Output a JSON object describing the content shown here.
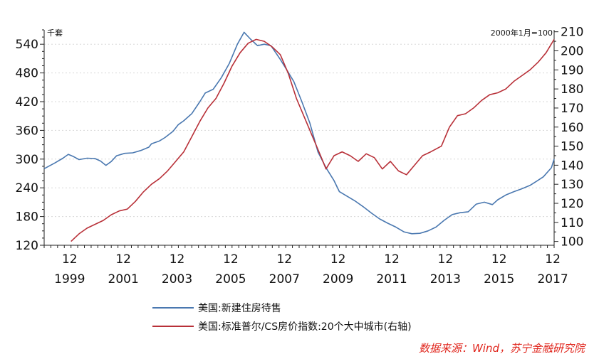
{
  "chart_data": {
    "type": "line",
    "left_axis_unit": "千套",
    "right_axis_unit": "2000年1月=100",
    "x_tick_top": [
      "12",
      "12",
      "12",
      "12",
      "12",
      "12",
      "12",
      "12",
      "12",
      "12"
    ],
    "x_tick_bottom": [
      "1999",
      "2001",
      "2003",
      "2005",
      "2007",
      "2009",
      "2011",
      "2013",
      "2015",
      "2017"
    ],
    "x_range": [
      1999.0,
      2018.0
    ],
    "left_axis": {
      "ylim": [
        120,
        570
      ],
      "ticks": [
        120,
        180,
        240,
        300,
        360,
        420,
        480,
        540
      ]
    },
    "right_axis": {
      "ylim": [
        98,
        211
      ],
      "ticks": [
        100,
        110,
        120,
        130,
        140,
        150,
        160,
        170,
        180,
        190,
        200,
        210
      ]
    },
    "grid": "horizontal dotted",
    "series": [
      {
        "name": "美国:新建住房待售",
        "axis": "left",
        "color": "#4a78b0",
        "points": [
          [
            1999.0,
            280
          ],
          [
            1999.4,
            292
          ],
          [
            1999.7,
            302
          ],
          [
            1999.9,
            310
          ],
          [
            2000.1,
            305
          ],
          [
            2000.3,
            299
          ],
          [
            2000.6,
            302
          ],
          [
            2000.9,
            301
          ],
          [
            2001.1,
            296
          ],
          [
            2001.3,
            287
          ],
          [
            2001.5,
            295
          ],
          [
            2001.7,
            307
          ],
          [
            2002.0,
            312
          ],
          [
            2002.3,
            313
          ],
          [
            2002.6,
            318
          ],
          [
            2002.9,
            325
          ],
          [
            2003.0,
            332
          ],
          [
            2003.3,
            338
          ],
          [
            2003.5,
            345
          ],
          [
            2003.8,
            358
          ],
          [
            2004.0,
            372
          ],
          [
            2004.2,
            380
          ],
          [
            2004.5,
            395
          ],
          [
            2004.8,
            420
          ],
          [
            2005.0,
            438
          ],
          [
            2005.3,
            446
          ],
          [
            2005.6,
            470
          ],
          [
            2005.9,
            500
          ],
          [
            2006.2,
            540
          ],
          [
            2006.45,
            565
          ],
          [
            2006.7,
            550
          ],
          [
            2006.95,
            537
          ],
          [
            2007.2,
            540
          ],
          [
            2007.45,
            537
          ],
          [
            2007.8,
            508
          ],
          [
            2008.0,
            490
          ],
          [
            2008.3,
            462
          ],
          [
            2008.6,
            420
          ],
          [
            2008.9,
            375
          ],
          [
            2009.2,
            315
          ],
          [
            2009.5,
            282
          ],
          [
            2009.8,
            255
          ],
          [
            2010.0,
            232
          ],
          [
            2010.3,
            222
          ],
          [
            2010.6,
            212
          ],
          [
            2010.9,
            200
          ],
          [
            2011.2,
            187
          ],
          [
            2011.5,
            175
          ],
          [
            2011.8,
            166
          ],
          [
            2012.1,
            158
          ],
          [
            2012.4,
            148
          ],
          [
            2012.7,
            144
          ],
          [
            2013.0,
            145
          ],
          [
            2013.3,
            150
          ],
          [
            2013.6,
            158
          ],
          [
            2013.9,
            172
          ],
          [
            2014.2,
            184
          ],
          [
            2014.5,
            188
          ],
          [
            2014.8,
            190
          ],
          [
            2015.1,
            206
          ],
          [
            2015.4,
            210
          ],
          [
            2015.7,
            205
          ],
          [
            2015.9,
            215
          ],
          [
            2016.2,
            225
          ],
          [
            2016.5,
            232
          ],
          [
            2016.8,
            238
          ],
          [
            2017.1,
            245
          ],
          [
            2017.3,
            252
          ],
          [
            2017.6,
            263
          ],
          [
            2017.9,
            282
          ],
          [
            2018.0,
            300
          ]
        ]
      },
      {
        "name": "美国:标准普尔/CS房价指数:20个大中城市(右轴)",
        "axis": "right",
        "color": "#b83038",
        "points": [
          [
            2000.0,
            100
          ],
          [
            2000.3,
            104
          ],
          [
            2000.6,
            107
          ],
          [
            2000.9,
            109
          ],
          [
            2001.2,
            111
          ],
          [
            2001.5,
            114
          ],
          [
            2001.8,
            116
          ],
          [
            2002.1,
            117
          ],
          [
            2002.4,
            121
          ],
          [
            2002.7,
            126
          ],
          [
            2003.0,
            130
          ],
          [
            2003.3,
            133
          ],
          [
            2003.6,
            137
          ],
          [
            2003.9,
            142
          ],
          [
            2004.2,
            147
          ],
          [
            2004.5,
            155
          ],
          [
            2004.8,
            163
          ],
          [
            2005.1,
            170
          ],
          [
            2005.4,
            175
          ],
          [
            2005.7,
            183
          ],
          [
            2006.0,
            192
          ],
          [
            2006.3,
            199
          ],
          [
            2006.6,
            204
          ],
          [
            2006.9,
            206
          ],
          [
            2007.2,
            205
          ],
          [
            2007.5,
            202
          ],
          [
            2007.8,
            198
          ],
          [
            2008.1,
            188
          ],
          [
            2008.4,
            175
          ],
          [
            2008.7,
            165
          ],
          [
            2009.0,
            155
          ],
          [
            2009.3,
            145
          ],
          [
            2009.5,
            138
          ],
          [
            2009.8,
            145
          ],
          [
            2010.1,
            147
          ],
          [
            2010.4,
            145
          ],
          [
            2010.7,
            142
          ],
          [
            2011.0,
            146
          ],
          [
            2011.3,
            144
          ],
          [
            2011.6,
            138
          ],
          [
            2011.9,
            142
          ],
          [
            2012.2,
            137
          ],
          [
            2012.5,
            135
          ],
          [
            2012.8,
            140
          ],
          [
            2013.1,
            145
          ],
          [
            2013.4,
            147
          ],
          [
            2013.8,
            150
          ],
          [
            2014.1,
            160
          ],
          [
            2014.4,
            166
          ],
          [
            2014.7,
            167
          ],
          [
            2015.0,
            170
          ],
          [
            2015.3,
            174
          ],
          [
            2015.6,
            177
          ],
          [
            2015.9,
            178
          ],
          [
            2016.2,
            180
          ],
          [
            2016.5,
            184
          ],
          [
            2016.8,
            187
          ],
          [
            2017.1,
            190
          ],
          [
            2017.4,
            194
          ],
          [
            2017.7,
            199
          ],
          [
            2018.0,
            206
          ]
        ]
      }
    ]
  },
  "legend": {
    "items": [
      {
        "label": "美国:新建住房待售",
        "color": "#4a78b0"
      },
      {
        "label": "美国:标准普尔/CS房价指数:20个大中城市(右轴)",
        "color": "#b83038"
      }
    ]
  },
  "source_note": "数据来源：Wind，苏宁金融研究院"
}
